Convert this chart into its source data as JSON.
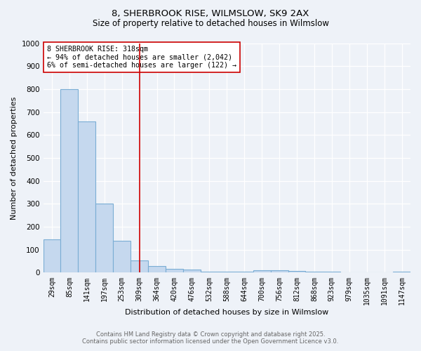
{
  "title1": "8, SHERBROOK RISE, WILMSLOW, SK9 2AX",
  "title2": "Size of property relative to detached houses in Wilmslow",
  "xlabel": "Distribution of detached houses by size in Wilmslow",
  "ylabel": "Number of detached properties",
  "bar_labels": [
    "29sqm",
    "85sqm",
    "141sqm",
    "197sqm",
    "253sqm",
    "309sqm",
    "364sqm",
    "420sqm",
    "476sqm",
    "532sqm",
    "588sqm",
    "644sqm",
    "700sqm",
    "756sqm",
    "812sqm",
    "868sqm",
    "923sqm",
    "979sqm",
    "1035sqm",
    "1091sqm",
    "1147sqm"
  ],
  "bar_values": [
    145,
    800,
    660,
    300,
    138,
    52,
    30,
    18,
    15,
    5,
    3,
    3,
    10,
    10,
    8,
    3,
    5,
    0,
    0,
    0,
    5
  ],
  "bar_color": "#c5d8ee",
  "bar_edge_color": "#7aadd4",
  "vline_x": 5.0,
  "vline_color": "#cc0000",
  "annotation_text": "8 SHERBROOK RISE: 318sqm\n← 94% of detached houses are smaller (2,042)\n6% of semi-detached houses are larger (122) →",
  "annotation_box_color": "#ffffff",
  "annotation_box_edge": "#cc0000",
  "ylim": [
    0,
    1000
  ],
  "yticks": [
    0,
    100,
    200,
    300,
    400,
    500,
    600,
    700,
    800,
    900,
    1000
  ],
  "footer1": "Contains HM Land Registry data © Crown copyright and database right 2025.",
  "footer2": "Contains public sector information licensed under the Open Government Licence v3.0.",
  "bg_color": "#eef2f8",
  "plot_bg": "#eef2f8",
  "grid_color": "#ffffff"
}
